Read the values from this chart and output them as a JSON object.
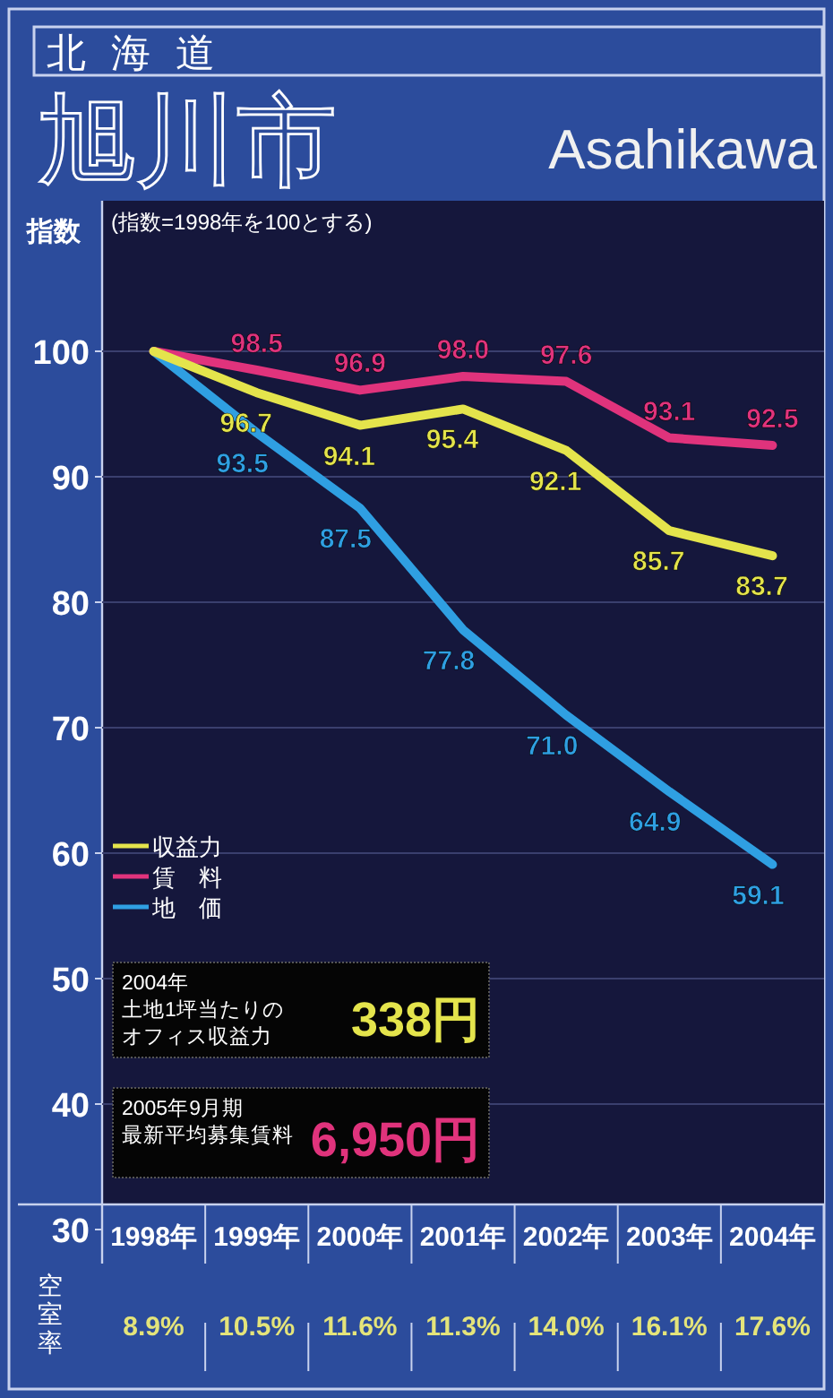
{
  "chart_data": {
    "type": "line",
    "title": "旭川市",
    "subtitle": "北海道",
    "ylabel": "指数",
    "categories": [
      "1998年",
      "1999年",
      "2000年",
      "2001年",
      "2002年",
      "2003年",
      "2004年"
    ],
    "series": [
      {
        "name": "収益力",
        "color": "#e4e44c",
        "values": [
          100,
          96.7,
          94.1,
          95.4,
          92.1,
          85.7,
          83.7
        ],
        "value_labels": [
          null,
          "96.7",
          "94.1",
          "95.4",
          "92.1",
          "85.7",
          "83.7"
        ]
      },
      {
        "name": "賃　料",
        "color": "#e0337c",
        "values": [
          100,
          98.5,
          96.9,
          98.0,
          97.6,
          93.1,
          92.5
        ],
        "value_labels": [
          null,
          "98.5",
          "96.9",
          "98.0",
          "97.6",
          "93.1",
          "92.5"
        ]
      },
      {
        "name": "地　価",
        "color": "#2f9fe2",
        "values": [
          100,
          93.5,
          87.5,
          77.8,
          71.0,
          64.9,
          59.1
        ],
        "value_labels": [
          null,
          "93.5",
          "87.5",
          "77.8",
          "71.0",
          "64.9",
          "59.1"
        ]
      }
    ],
    "ylim": [
      30,
      112
    ],
    "yticks": [
      30,
      40,
      50,
      60,
      70,
      80,
      90,
      100
    ],
    "grid": "y",
    "legend": "bottom left",
    "marker": "none",
    "line_style": "solid",
    "annotations": [
      "Asahikawa",
      "(指数=1998年を100とする)",
      "2004年",
      "土地1坪当たりの",
      "オフィス収益力",
      "338円",
      "2005年9月期",
      "最新平均募集賃料",
      "6,950円",
      "空室率",
      "8.9%",
      "10.5%",
      "11.6%",
      "11.3%",
      "14.0%",
      "16.1%",
      "17.6%"
    ]
  }
}
